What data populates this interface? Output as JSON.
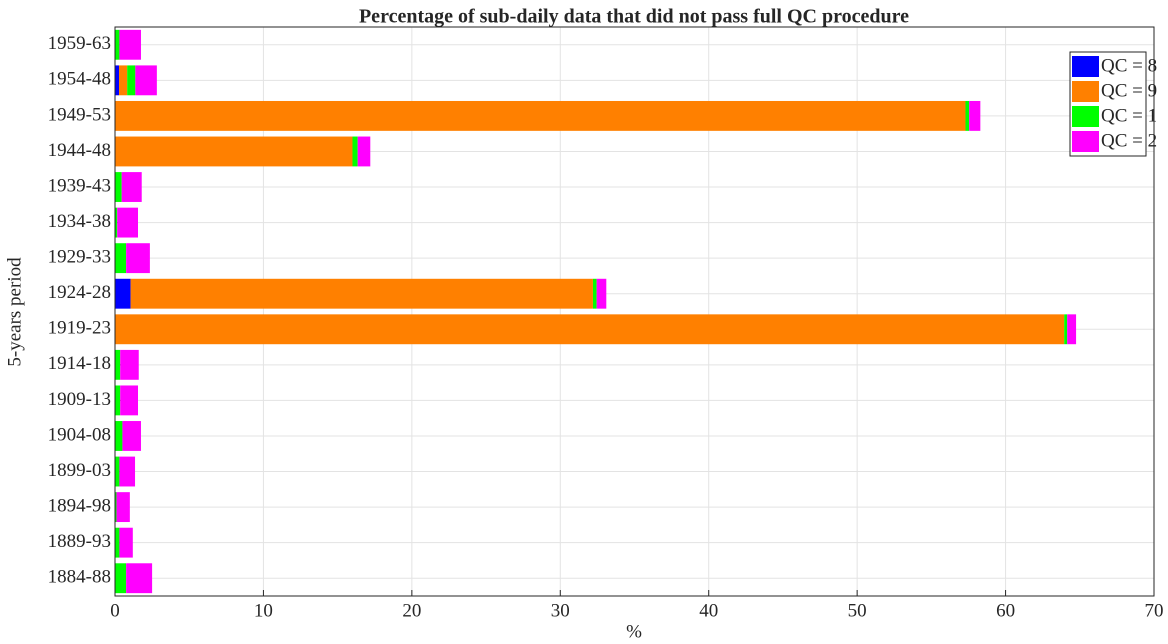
{
  "chart_data": {
    "type": "stacked_barh",
    "title": "Percentage of sub-daily data that did not pass full QC procedure",
    "xlabel": "%",
    "ylabel": "5-years period",
    "categories": [
      "1959-63",
      "1954-48",
      "1949-53",
      "1944-48",
      "1939-43",
      "1934-38",
      "1929-33",
      "1924-28",
      "1919-23",
      "1914-18",
      "1909-13",
      "1904-08",
      "1899-03",
      "1894-98",
      "1889-93",
      "1884-88"
    ],
    "series": [
      {
        "name": "QC = 8",
        "color": "#0000ff",
        "values": [
          0,
          0.27,
          0,
          0,
          0,
          0,
          0,
          1.05,
          0,
          0,
          0,
          0,
          0,
          0,
          0,
          0
        ]
      },
      {
        "name": "QC = 9",
        "color": "#ff8000",
        "values": [
          0,
          0.55,
          57.3,
          16.0,
          0,
          0,
          0,
          31.15,
          63.95,
          0,
          0,
          0,
          0,
          0,
          0,
          0
        ]
      },
      {
        "name": "QC = 1",
        "color": "#00ff00",
        "values": [
          0.3,
          0.55,
          0.25,
          0.35,
          0.45,
          0.15,
          0.75,
          0.25,
          0.2,
          0.35,
          0.35,
          0.5,
          0.3,
          0.1,
          0.3,
          0.75
        ]
      },
      {
        "name": "QC = 2",
        "color": "#ff00ff",
        "values": [
          1.45,
          1.45,
          0.75,
          0.85,
          1.35,
          1.4,
          1.6,
          0.65,
          0.6,
          1.25,
          1.2,
          1.25,
          1.05,
          0.9,
          0.9,
          1.75
        ]
      }
    ],
    "xlim": [
      0,
      70
    ],
    "xticks": [
      0,
      10,
      20,
      30,
      40,
      50,
      60,
      70
    ],
    "grid": true,
    "legend": "upper right"
  }
}
